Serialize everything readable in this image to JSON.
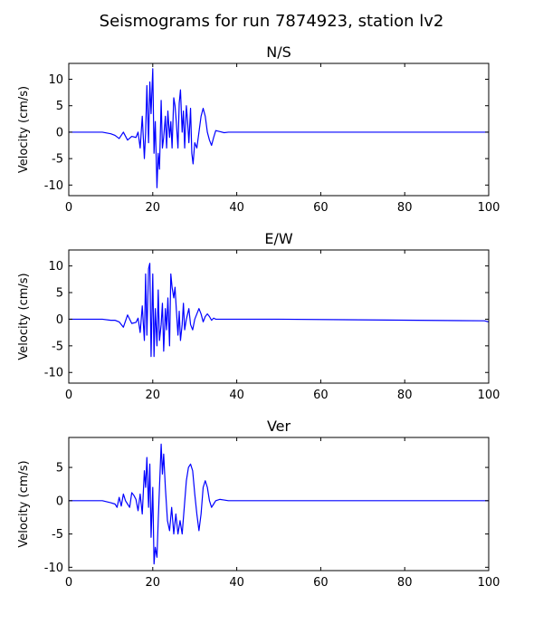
{
  "figure": {
    "title": "Seismograms for run 7874923, station lv2"
  },
  "chart_data": [
    {
      "type": "line",
      "title": "N/S",
      "xlabel": "",
      "ylabel": "Velocity (cm/s)",
      "xlim": [
        0,
        100
      ],
      "ylim": [
        -12,
        13
      ],
      "xticks": [
        0,
        20,
        40,
        60,
        80,
        100
      ],
      "yticks": [
        10,
        5,
        0,
        -5,
        -10
      ],
      "grid": false,
      "series_color": "#0000ff",
      "x": [
        0,
        8,
        10,
        11,
        12,
        13,
        14,
        15,
        16,
        16.5,
        17,
        17.5,
        18,
        18.3,
        18.6,
        19,
        19.3,
        19.6,
        20,
        20.3,
        20.6,
        21,
        21.3,
        21.6,
        22,
        22.3,
        22.6,
        23,
        23.3,
        23.6,
        24,
        24.3,
        24.6,
        25,
        25.3,
        25.6,
        26,
        26.3,
        26.6,
        27,
        27.3,
        27.6,
        28,
        28.3,
        28.6,
        29,
        29.3,
        29.6,
        30,
        30.5,
        31,
        31.5,
        32,
        32.5,
        33,
        33.5,
        34,
        34.5,
        35,
        36,
        37,
        38,
        39,
        40,
        45,
        50,
        100
      ],
      "y": [
        0,
        0,
        -0.3,
        -0.6,
        -1.2,
        0,
        -1.5,
        -0.8,
        -1.0,
        0,
        -3.0,
        3.0,
        -5.0,
        0,
        8.8,
        -2.0,
        9.5,
        3.5,
        12,
        -4,
        2,
        -10.5,
        -4,
        -7,
        6,
        -3,
        -1,
        3,
        -3,
        4,
        -1,
        2,
        -3,
        6.5,
        5,
        2,
        -3,
        5.5,
        8,
        0,
        4,
        -3,
        5,
        2,
        -2,
        4.5,
        -4,
        -6,
        -2,
        -3,
        0,
        3,
        4.5,
        3,
        0,
        -1.5,
        -2.5,
        -1,
        0.3,
        0.1,
        -0.1,
        0,
        0,
        0,
        0,
        0,
        0
      ],
      "values_note": ""
    },
    {
      "type": "line",
      "title": "E/W",
      "xlabel": "",
      "ylabel": "Velocity (cm/s)",
      "xlim": [
        0,
        100
      ],
      "ylim": [
        -12,
        13
      ],
      "xticks": [
        0,
        20,
        40,
        60,
        80,
        100
      ],
      "yticks": [
        10,
        5,
        0,
        -5,
        -10
      ],
      "grid": false,
      "series_color": "#0000ff",
      "x": [
        0,
        8,
        10,
        11,
        12,
        13,
        14,
        15,
        16,
        16.5,
        17,
        17.5,
        18,
        18.3,
        18.6,
        19,
        19.3,
        19.6,
        20,
        20.3,
        20.6,
        21,
        21.3,
        21.6,
        22,
        22.3,
        22.6,
        23,
        23.3,
        23.6,
        24,
        24.3,
        24.6,
        25,
        25.3,
        25.6,
        26,
        26.3,
        26.6,
        27,
        27.3,
        27.6,
        28,
        28.3,
        28.6,
        29,
        29.5,
        30,
        30.5,
        31,
        31.5,
        32,
        32.5,
        33,
        33.5,
        34,
        34.5,
        35,
        36,
        37,
        38,
        39,
        40,
        45,
        50,
        99,
        100
      ],
      "y": [
        0,
        0,
        -0.2,
        -0.2,
        -0.5,
        -1.5,
        0.8,
        -0.8,
        -0.6,
        0.2,
        -2.5,
        2.5,
        -4,
        8.5,
        -3,
        9.5,
        10.5,
        -7,
        8.5,
        -7,
        2,
        -5,
        5.5,
        -4,
        -1,
        3,
        -6,
        2,
        -2,
        4,
        -5,
        8.5,
        6,
        4,
        6,
        2,
        -3,
        1.5,
        -4,
        -1,
        3,
        -2,
        0,
        1,
        2,
        -1,
        -2,
        0,
        1,
        2,
        1,
        -0.5,
        0.5,
        1,
        0.5,
        -0.2,
        0.2,
        0,
        0,
        0,
        0,
        0,
        0,
        0,
        0,
        -0.3,
        -0.5
      ],
      "values_note": ""
    },
    {
      "type": "line",
      "title": "Ver",
      "xlabel": "",
      "ylabel": "Velocity (cm/s)",
      "xlim": [
        0,
        100
      ],
      "ylim": [
        -10.5,
        9.5
      ],
      "xticks": [
        0,
        20,
        40,
        60,
        80,
        100
      ],
      "yticks": [
        5,
        0,
        -5,
        -10
      ],
      "grid": false,
      "series_color": "#0000ff",
      "x": [
        0,
        8,
        10,
        11,
        11.5,
        12,
        12.5,
        13,
        13.5,
        14,
        14.5,
        15,
        15.5,
        16,
        16.5,
        17,
        17.5,
        18,
        18.3,
        18.6,
        19,
        19.3,
        19.6,
        20,
        20.3,
        20.6,
        21,
        21.3,
        21.6,
        22,
        22.3,
        22.6,
        23,
        23.5,
        24,
        24.5,
        25,
        25.5,
        26,
        26.5,
        27,
        27.5,
        28,
        28.5,
        29,
        29.5,
        30,
        30.5,
        31,
        31.5,
        32,
        32.5,
        33,
        33.5,
        34,
        34.5,
        35,
        36,
        37,
        38,
        40,
        45,
        50,
        100
      ],
      "y": [
        0,
        0,
        -0.3,
        -0.5,
        -1.0,
        0.5,
        -0.8,
        1.0,
        0,
        -0.5,
        -1.0,
        1.2,
        0.8,
        0.2,
        -1.5,
        1.0,
        -2.0,
        4.5,
        2.0,
        6.5,
        -1.0,
        5.5,
        -5.5,
        2.0,
        -9.5,
        -7.0,
        -8.5,
        -3.0,
        2.0,
        8.5,
        4.0,
        7.0,
        2.0,
        -3.0,
        -4.5,
        -1.0,
        -5.0,
        -2.0,
        -5.0,
        -3.0,
        -5.0,
        -1.0,
        3.0,
        5.0,
        5.5,
        4.5,
        1.0,
        -2.0,
        -4.5,
        -2.0,
        2.0,
        3.0,
        2.0,
        0,
        -1.0,
        -0.5,
        0,
        0.2,
        0.1,
        0,
        0,
        0,
        0,
        0
      ],
      "values_note": ""
    }
  ]
}
